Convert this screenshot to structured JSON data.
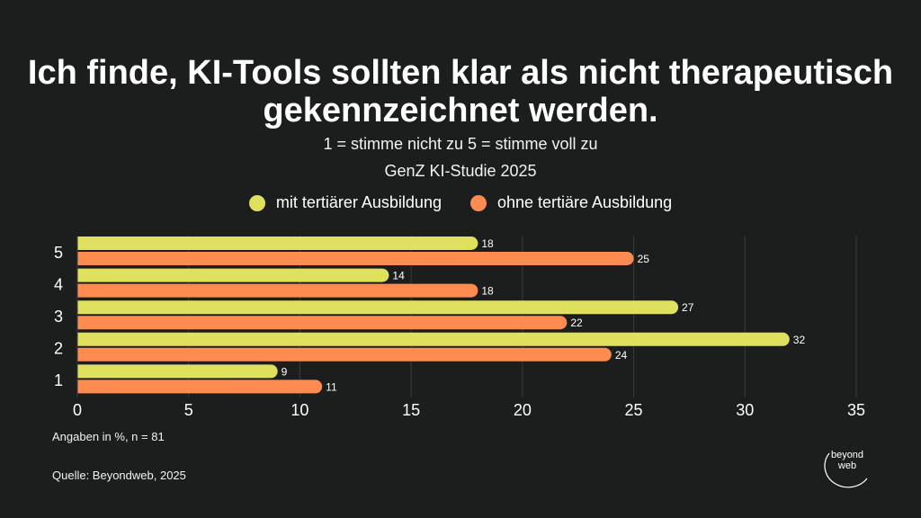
{
  "header": {
    "title": "Ich finde, KI-Tools sollten klar als nicht therapeutisch gekennzeichnet werden.",
    "subtitle": "1 = stimme nicht zu 5 = stimme voll zu",
    "subtitle2": "GenZ KI-Studie 2025"
  },
  "legend": [
    {
      "label": "mit tertiärer Ausbildung",
      "color": "#dfe05e"
    },
    {
      "label": "ohne tertiäre Ausbildung",
      "color": "#fe8c50"
    }
  ],
  "footer": {
    "note": "Angaben in %, n = 81",
    "source": "Quelle: Beyondweb, 2025"
  },
  "logo": {
    "line1": "beyond",
    "line2": "web"
  },
  "chart_data": {
    "type": "bar",
    "orientation": "horizontal",
    "categories": [
      "5",
      "4",
      "3",
      "2",
      "1"
    ],
    "series": [
      {
        "name": "mit tertiärer Ausbildung",
        "color": "#dfe05e",
        "values": [
          18,
          14,
          27,
          32,
          9
        ]
      },
      {
        "name": "ohne tertiäre Ausbildung",
        "color": "#fe8c50",
        "values": [
          25,
          18,
          22,
          24,
          11
        ]
      }
    ],
    "xlim": [
      0,
      35
    ],
    "xticks": [
      0,
      5,
      10,
      15,
      20,
      25,
      30,
      35
    ],
    "grid": true,
    "legend_position": "top"
  }
}
